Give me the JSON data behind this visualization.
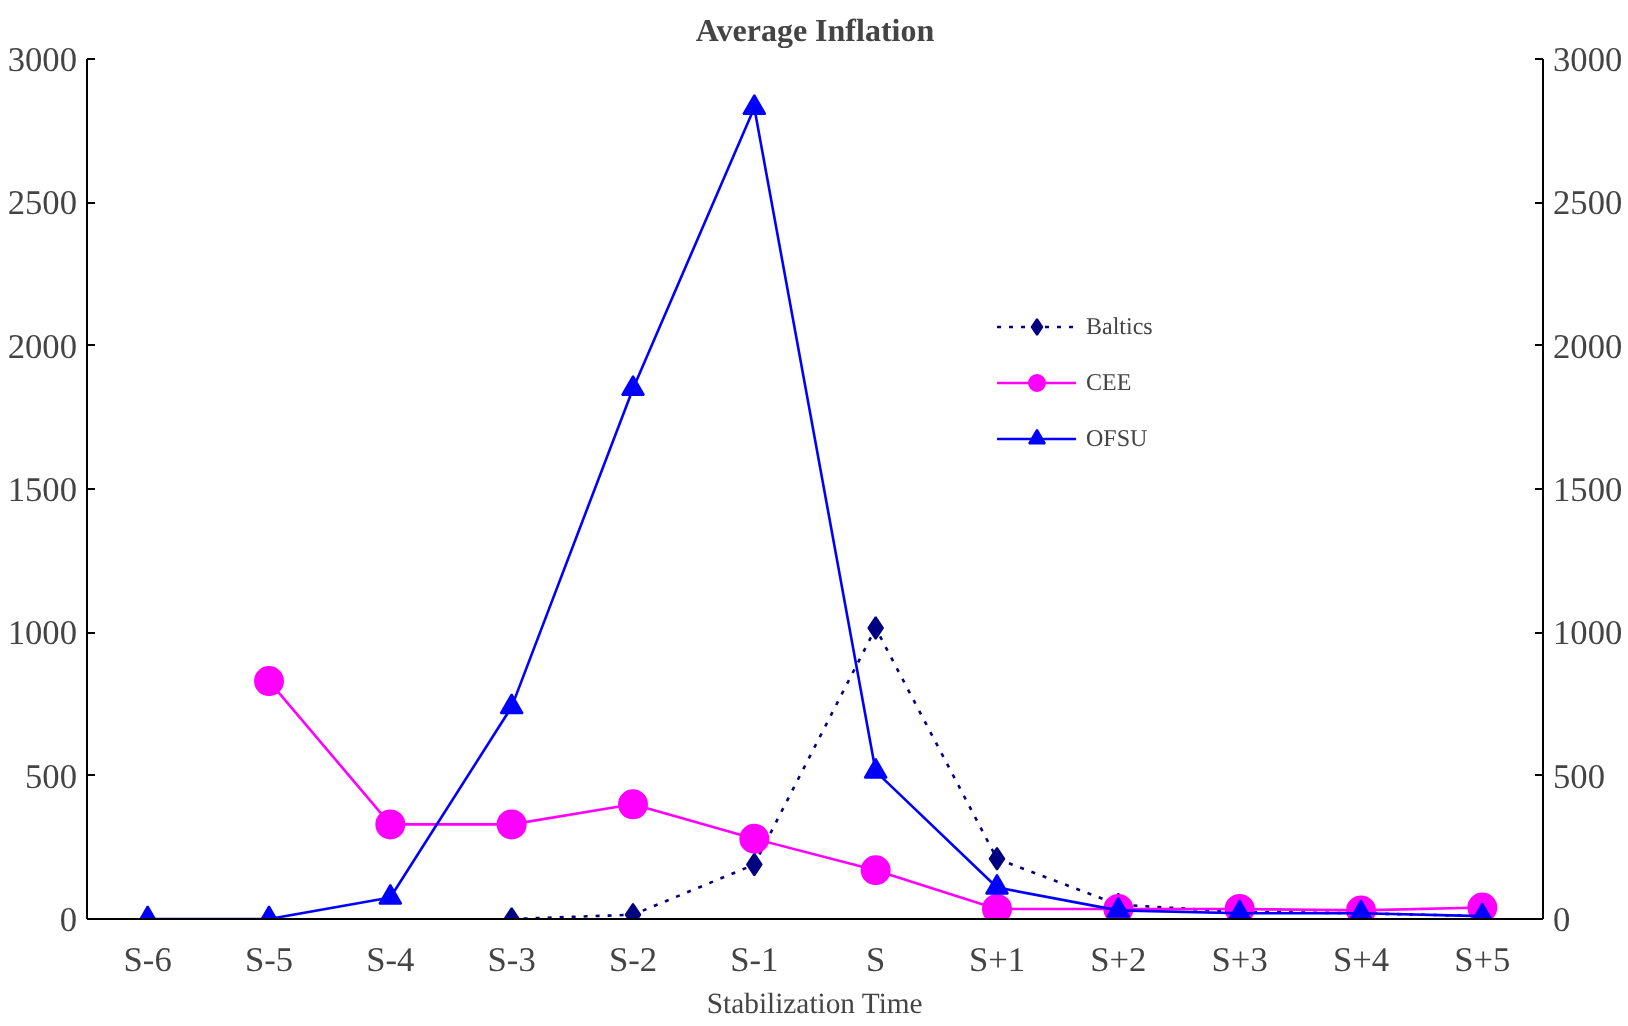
{
  "chart_data": {
    "type": "line",
    "title": "Average Inflation",
    "xlabel": "Stabilization Time",
    "categories": [
      "S-6",
      "S-5",
      "S-4",
      "S-3",
      "S-2",
      "S-1",
      "S",
      "S+1",
      "S+2",
      "S+3",
      "S+4",
      "S+5"
    ],
    "series": [
      {
        "name": "Baltics",
        "color": "#000080",
        "marker": "diamond",
        "line_style": "dotted",
        "values": [
          null,
          null,
          null,
          0,
          15,
          190,
          1015,
          210,
          50,
          25,
          20,
          10
        ]
      },
      {
        "name": "CEE",
        "color": "#ff00ff",
        "marker": "circle",
        "line_style": "solid",
        "values": [
          null,
          830,
          330,
          330,
          400,
          280,
          170,
          35,
          35,
          35,
          30,
          40
        ]
      },
      {
        "name": "OFSU",
        "color": "#0000ff",
        "marker": "triangle",
        "line_style": "solid",
        "values": [
          0,
          0,
          75,
          740,
          1850,
          2830,
          515,
          110,
          30,
          20,
          20,
          10
        ]
      }
    ],
    "ylim": [
      0,
      3000
    ],
    "yticks": [
      0,
      500,
      1000,
      1500,
      2000,
      2500,
      3000
    ],
    "y2lim": [
      0,
      3000
    ],
    "y2ticks": [
      0,
      500,
      1000,
      1500,
      2000,
      2500,
      3000
    ],
    "grid": false,
    "legend": "right"
  }
}
